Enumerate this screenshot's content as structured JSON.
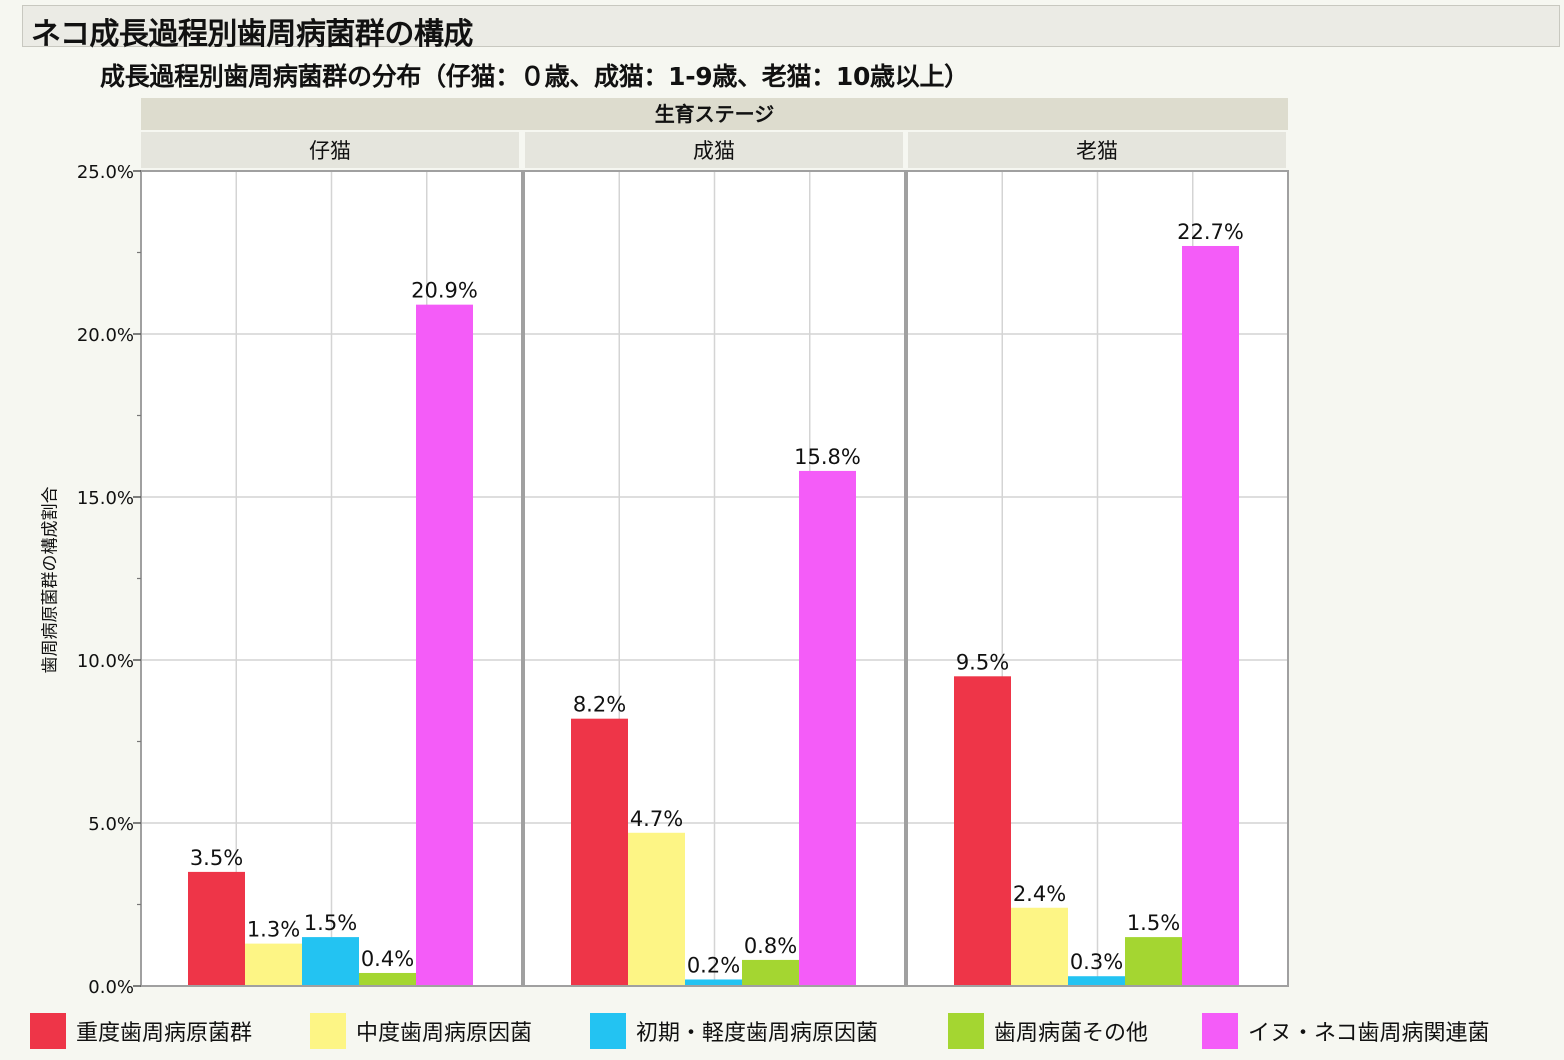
{
  "title": "ネコ成長過程別歯周病菌群の構成",
  "subtitle": "成長過程別歯周病菌群の分布（仔猫：０歳、成猫：1-9歳、老猫：10歳以上）",
  "facet_title": "生育ステージ",
  "chart_data": {
    "type": "bar",
    "ylabel": "歯周病原菌群の構成割合",
    "ylim": [
      0,
      25
    ],
    "yticks": [
      "0.0%",
      "5.0%",
      "10.0%",
      "15.0%",
      "20.0%",
      "25.0%"
    ],
    "grid": true,
    "legend_position": "bottom",
    "panels": [
      "仔猫",
      "成猫",
      "老猫"
    ],
    "series": [
      {
        "name": "重度歯周病原菌群",
        "color": "#ee3548",
        "values": [
          3.5,
          8.2,
          9.5
        ],
        "labels": [
          "3.5%",
          "8.2%",
          "9.5%"
        ]
      },
      {
        "name": "中度歯周病原因菌",
        "color": "#fdf585",
        "values": [
          1.3,
          4.7,
          2.4
        ],
        "labels": [
          "1.3%",
          "4.7%",
          "2.4%"
        ]
      },
      {
        "name": "初期・軽度歯周病原因菌",
        "color": "#23c3f2",
        "values": [
          1.5,
          0.2,
          0.3
        ],
        "labels": [
          "1.5%",
          "0.2%",
          "0.3%"
        ]
      },
      {
        "name": "歯周病菌その他",
        "color": "#a4d631",
        "values": [
          0.4,
          0.8,
          1.5
        ],
        "labels": [
          "0.4%",
          "0.8%",
          "1.5%"
        ]
      },
      {
        "name": "イヌ・ネコ歯周病関連菌",
        "color": "#f45cf8",
        "values": [
          20.9,
          15.8,
          22.7
        ],
        "labels": [
          "20.9%",
          "15.8%",
          "22.7%"
        ]
      }
    ]
  }
}
